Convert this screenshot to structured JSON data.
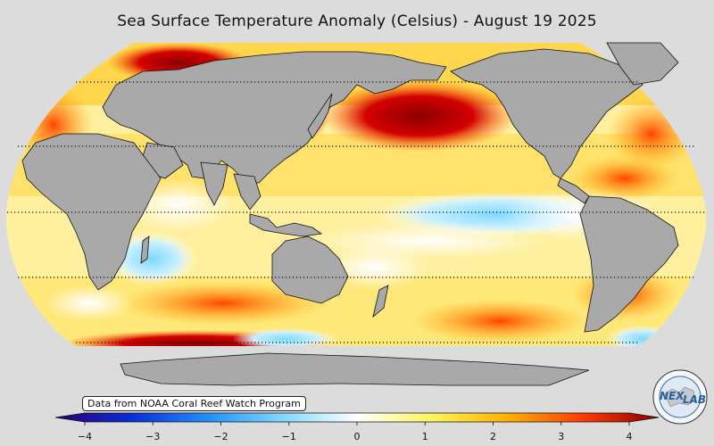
{
  "title": "Sea Surface Temperature Anomaly (Celsius) - August 19 2025",
  "credit": "Data from NOAA Coral Reef Watch Program",
  "logo": {
    "icon": "nexlab-globe-icon",
    "text_left": "NEX",
    "text_right": "LAB"
  },
  "colorbar": {
    "min": -4,
    "max": 4,
    "ticks": [
      {
        "value": -4,
        "label": "−4"
      },
      {
        "value": -3,
        "label": "−3"
      },
      {
        "value": -2,
        "label": "−2"
      },
      {
        "value": -1,
        "label": "−1"
      },
      {
        "value": 0,
        "label": "0"
      },
      {
        "value": 1,
        "label": "1"
      },
      {
        "value": 2,
        "label": "2"
      },
      {
        "value": 3,
        "label": "3"
      },
      {
        "value": 4,
        "label": "4"
      }
    ],
    "colors": [
      "#2b0070",
      "#0a2bd6",
      "#1e8fff",
      "#7fd8ff",
      "#ffffff",
      "#fff35a",
      "#ffb000",
      "#ff3a00",
      "#8b0000"
    ]
  },
  "map": {
    "projection": "robinson",
    "ocean_base_color": "#fff0a0",
    "land_color": "#a9a9a9",
    "graticule_latitudes": [
      60,
      30,
      0,
      -30,
      -60
    ]
  }
}
